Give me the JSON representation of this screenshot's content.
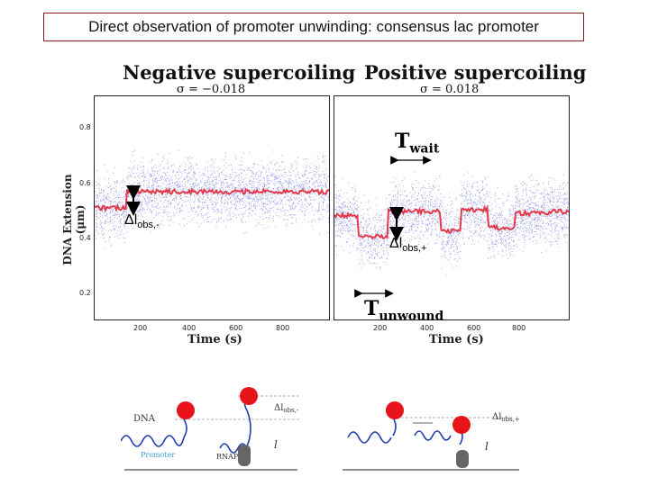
{
  "slide_title": "Direct observation of promoter unwinding: consensus lac promoter",
  "left_plot": {
    "title": "Negative supercoiling",
    "sigma": "σ = −0.018"
  },
  "right_plot": {
    "title": "Positive supercoiling",
    "sigma": "σ = 0.018"
  },
  "axes": {
    "ylabel": "DNA Extension (μm)",
    "xlabel": "Time (s)",
    "yticks": [
      "0.8",
      "0.6",
      "0.4",
      "0.2"
    ],
    "xticks": [
      "200",
      "400",
      "600",
      "800"
    ]
  },
  "annotations": {
    "dl_minus_main": "Δl",
    "dl_minus_sub": "obs,-",
    "dl_plus_main": "Δl",
    "dl_plus_sub": "obs,+",
    "twait_main": "T",
    "twait_sub": "wait",
    "tunwound_main": "T",
    "tunwound_sub": "unwound"
  },
  "diagram": {
    "dna_label": "DNA",
    "promoter_label": "Promoter",
    "rnap_label": "RNAP",
    "dl_left": "Δl",
    "dl_left_sub": "obs,-",
    "dl_right": "Δl",
    "dl_right_sub": "obs,+",
    "l_label": "l"
  },
  "colors": {
    "scatter": "#5a5ee8",
    "trace": "#e23a4a",
    "bead": "#e8141c",
    "coil": "#1e3fb0",
    "title_border": "#8b1a1a"
  }
}
